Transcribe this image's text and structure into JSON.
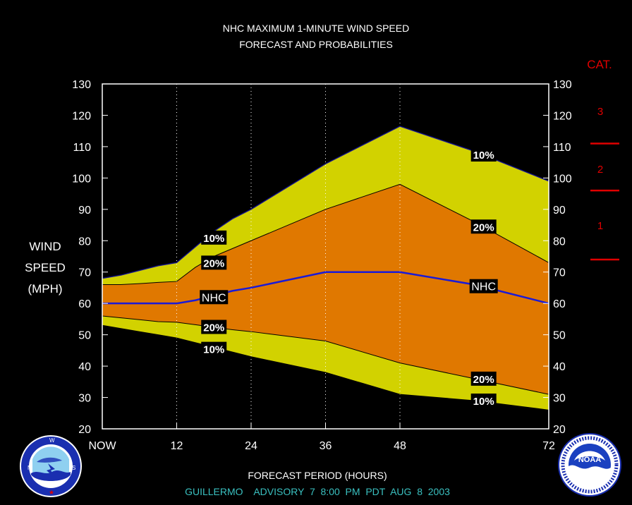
{
  "chart_data": {
    "type": "area",
    "title": "NHC MAXIMUM 1-MINUTE WIND SPEED",
    "subtitle": "FORECAST AND PROBABILITIES",
    "xlabel": "FORECAST PERIOD (HOURS)",
    "ylabel": [
      "WIND",
      "SPEED",
      "(MPH)"
    ],
    "footer": "GUILLERMO    ADVISORY  7  8:00  PM  PDT  AUG  8  2003",
    "xlim": [
      0,
      72
    ],
    "ylim": [
      20,
      130
    ],
    "y_ticks": [
      20,
      30,
      40,
      50,
      60,
      70,
      80,
      90,
      100,
      110,
      120,
      130
    ],
    "x_ticks": [
      {
        "x": 0,
        "label": "NOW"
      },
      {
        "x": 12,
        "label": "12"
      },
      {
        "x": 24,
        "label": "24"
      },
      {
        "x": 36,
        "label": "36"
      },
      {
        "x": 48,
        "label": "48"
      },
      {
        "x": 72,
        "label": "72"
      }
    ],
    "x": [
      0,
      3,
      6,
      9,
      12,
      15,
      18,
      21,
      24,
      36,
      48,
      60,
      72
    ],
    "series": [
      {
        "name": "10%",
        "values": [
          68,
          69,
          70.5,
          72,
          73,
          78,
          83,
          87,
          90,
          104.5,
          116.5,
          108.5,
          99
        ]
      },
      {
        "name": "20%",
        "values": [
          66,
          66,
          66.3,
          66.7,
          67,
          71.5,
          75,
          77.5,
          80,
          90,
          98,
          86,
          73
        ]
      },
      {
        "name": "NHC",
        "values": [
          60,
          60,
          60,
          60,
          60,
          61,
          62.5,
          64,
          65,
          70,
          70,
          66,
          60
        ]
      },
      {
        "name": "20%",
        "values": [
          56,
          55.4,
          54.8,
          54.2,
          54,
          53.2,
          52.4,
          51.6,
          51,
          48,
          41,
          36,
          31
        ]
      },
      {
        "name": "10%",
        "values": [
          53,
          52,
          51,
          50,
          49,
          47.5,
          46,
          44.5,
          43,
          38,
          31,
          29,
          26
        ]
      }
    ],
    "labels": [
      {
        "text": "10%",
        "x": 18,
        "y": 81
      },
      {
        "text": "20%",
        "x": 18,
        "y": 73
      },
      {
        "text": "NHC",
        "x": 18,
        "y": 62
      },
      {
        "text": "20%",
        "x": 18,
        "y": 52.5
      },
      {
        "text": "10%",
        "x": 18,
        "y": 45.5
      },
      {
        "text": "10%",
        "x": 61.5,
        "y": 107.5
      },
      {
        "text": "20%",
        "x": 61.5,
        "y": 84.5
      },
      {
        "text": "NHC",
        "x": 61.5,
        "y": 65.5
      },
      {
        "text": "20%",
        "x": 61.5,
        "y": 36
      },
      {
        "text": "10%",
        "x": 61.5,
        "y": 29
      }
    ],
    "category_scale": {
      "title": "CAT.",
      "categories": [
        {
          "label": "3",
          "y": 121.5
        },
        {
          "label": "2",
          "y": 103
        },
        {
          "label": "1",
          "y": 85
        }
      ],
      "thresholds": [
        111,
        96,
        74
      ]
    },
    "colors": {
      "outer_band": "#d2d200",
      "inner_band": "#e07800",
      "nhc_line": "#1a1ad8",
      "category": "#e00000",
      "grid": "#ffffff",
      "footer": "#3ac0c0"
    }
  },
  "logos": {
    "nws": {
      "name": "NATIONAL WEATHER SERVICE"
    },
    "noaa": {
      "name": "NOAA",
      "ring_text": "NATIONAL OCEANIC AND ATMOSPHERIC ADMINISTRATION  U.S. DEPARTMENT OF COMMERCE"
    }
  }
}
